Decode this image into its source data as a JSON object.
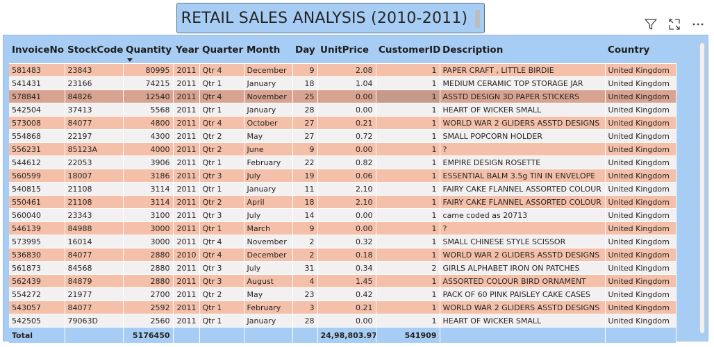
{
  "title": "RETAIL SALES ANALYSIS (2010-2011)",
  "icons": {
    "filter": "filter-icon",
    "focus": "focus-mode-icon",
    "more": "more-options-icon"
  },
  "colors": {
    "header_bg": "#a8cdf5",
    "row_odd": "#f4c0aa",
    "row_even": "#f2f0f0",
    "row_selected": "#d8a391"
  },
  "table": {
    "columns": [
      "InvoiceNo",
      "StockCode",
      "Quantity",
      "Year",
      "Quarter",
      "Month",
      "Day",
      "UnitPrice",
      "CustomerID",
      "Description",
      "Country"
    ],
    "sorted_column": "Quantity",
    "selected_row_index": 2,
    "rows": [
      [
        "581483",
        "23843",
        "80995",
        "2011",
        "Qtr 4",
        "December",
        "9",
        "2.08",
        "1",
        "PAPER CRAFT , LITTLE BIRDIE",
        "United Kingdom"
      ],
      [
        "541431",
        "23166",
        "74215",
        "2011",
        "Qtr 1",
        "January",
        "18",
        "1.04",
        "1",
        "MEDIUM CERAMIC TOP STORAGE JAR",
        "United Kingdom"
      ],
      [
        "578841",
        "84826",
        "12540",
        "2011",
        "Qtr 4",
        "November",
        "25",
        "0.00",
        "1",
        "ASSTD DESIGN 3D PAPER STICKERS",
        "United Kingdom"
      ],
      [
        "542504",
        "37413",
        "5568",
        "2011",
        "Qtr 1",
        "January",
        "28",
        "0.00",
        "1",
        "HEART OF WICKER SMALL",
        "United Kingdom"
      ],
      [
        "573008",
        "84077",
        "4800",
        "2011",
        "Qtr 4",
        "October",
        "27",
        "0.21",
        "1",
        "WORLD WAR 2 GLIDERS ASSTD DESIGNS",
        "United Kingdom"
      ],
      [
        "554868",
        "22197",
        "4300",
        "2011",
        "Qtr 2",
        "May",
        "27",
        "0.72",
        "1",
        "SMALL POPCORN HOLDER",
        "United Kingdom"
      ],
      [
        "556231",
        "85123A",
        "4000",
        "2011",
        "Qtr 2",
        "June",
        "9",
        "0.00",
        "1",
        "?",
        "United Kingdom"
      ],
      [
        "544612",
        "22053",
        "3906",
        "2011",
        "Qtr 1",
        "February",
        "22",
        "0.82",
        "1",
        "EMPIRE DESIGN ROSETTE",
        "United Kingdom"
      ],
      [
        "560599",
        "18007",
        "3186",
        "2011",
        "Qtr 3",
        "July",
        "19",
        "0.06",
        "1",
        "ESSENTIAL BALM 3.5g TIN IN ENVELOPE",
        "United Kingdom"
      ],
      [
        "540815",
        "21108",
        "3114",
        "2011",
        "Qtr 1",
        "January",
        "11",
        "2.10",
        "1",
        "FAIRY CAKE FLANNEL ASSORTED COLOUR",
        "United Kingdom"
      ],
      [
        "550461",
        "21108",
        "3114",
        "2011",
        "Qtr 2",
        "April",
        "18",
        "2.10",
        "1",
        "FAIRY CAKE FLANNEL ASSORTED COLOUR",
        "United Kingdom"
      ],
      [
        "560040",
        "23343",
        "3100",
        "2011",
        "Qtr 3",
        "July",
        "14",
        "0.00",
        "1",
        "came coded as 20713",
        "United Kingdom"
      ],
      [
        "546139",
        "84988",
        "3000",
        "2011",
        "Qtr 1",
        "March",
        "9",
        "0.00",
        "1",
        "?",
        "United Kingdom"
      ],
      [
        "573995",
        "16014",
        "3000",
        "2011",
        "Qtr 4",
        "November",
        "2",
        "0.32",
        "1",
        "SMALL CHINESE STYLE SCISSOR",
        "United Kingdom"
      ],
      [
        "536830",
        "84077",
        "2880",
        "2010",
        "Qtr 4",
        "December",
        "2",
        "0.18",
        "1",
        "WORLD WAR 2 GLIDERS ASSTD DESIGNS",
        "United Kingdom"
      ],
      [
        "561873",
        "84568",
        "2880",
        "2011",
        "Qtr 3",
        "July",
        "31",
        "0.34",
        "2",
        "GIRLS ALPHABET IRON ON PATCHES",
        "United Kingdom"
      ],
      [
        "562439",
        "84879",
        "2880",
        "2011",
        "Qtr 3",
        "August",
        "4",
        "1.45",
        "1",
        "ASSORTED COLOUR BIRD ORNAMENT",
        "United Kingdom"
      ],
      [
        "554272",
        "21977",
        "2700",
        "2011",
        "Qtr 2",
        "May",
        "23",
        "0.42",
        "1",
        "PACK OF 60 PINK PAISLEY CAKE CASES",
        "United Kingdom"
      ],
      [
        "543057",
        "84077",
        "2592",
        "2011",
        "Qtr 1",
        "February",
        "3",
        "0.21",
        "1",
        "WORLD WAR 2 GLIDERS ASSTD DESIGNS",
        "United Kingdom"
      ],
      [
        "542505",
        "79063D",
        "2560",
        "2011",
        "Qtr 1",
        "January",
        "28",
        "0.00",
        "1",
        "HEART OF WICKER SMALL",
        "United Kingdom"
      ]
    ],
    "totals": [
      "Total",
      "",
      "5176450",
      "",
      "",
      "",
      "",
      "24,98,803.97",
      "541909",
      "",
      ""
    ]
  }
}
